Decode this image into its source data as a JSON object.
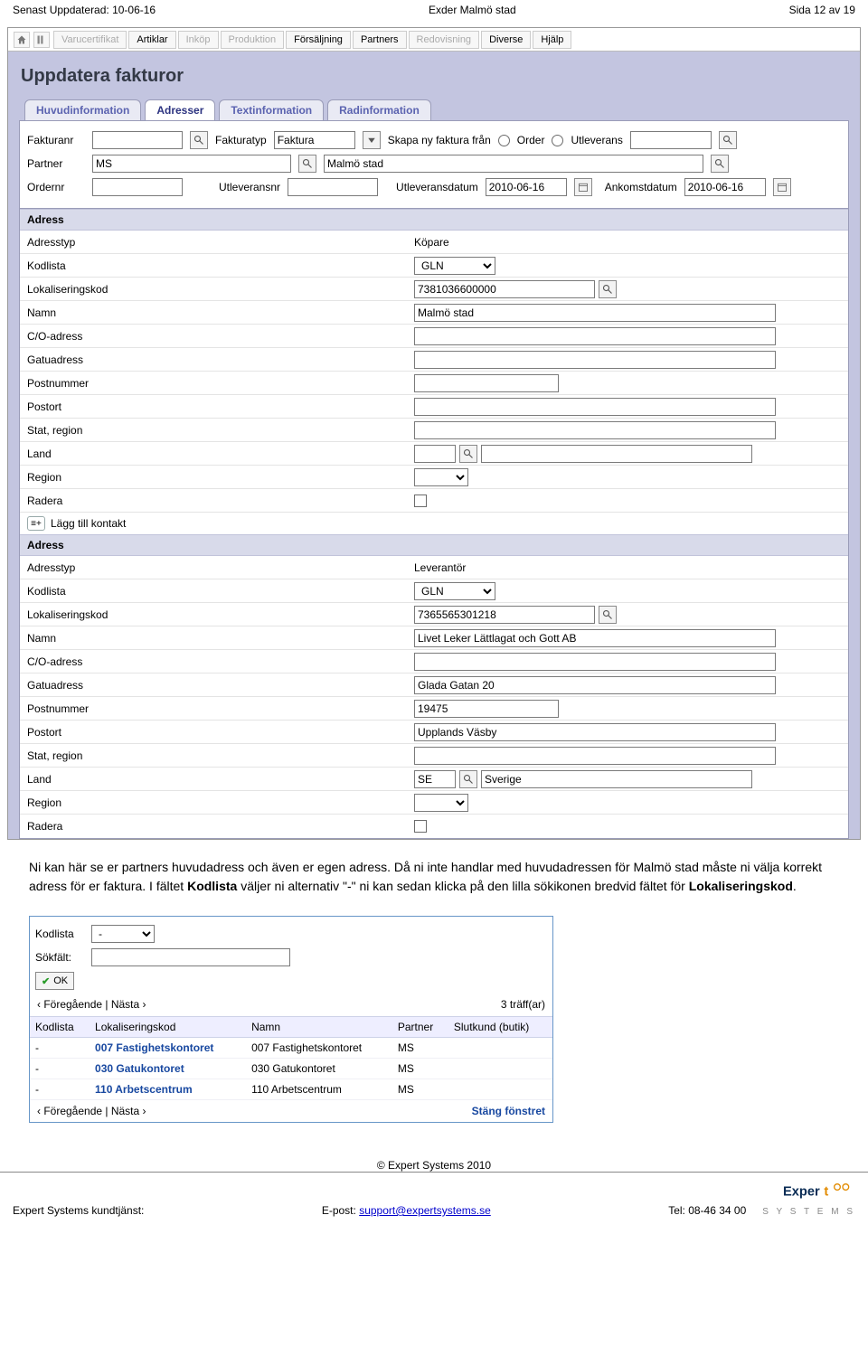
{
  "header": {
    "left": "Senast Uppdaterad: 10-06-16",
    "center": "Exder Malmö stad",
    "right": "Sida 12 av 19"
  },
  "menubar": {
    "items": [
      {
        "label": "Varucertifikat",
        "dim": true
      },
      {
        "label": "Artiklar",
        "dim": false
      },
      {
        "label": "Inköp",
        "dim": true
      },
      {
        "label": "Produktion",
        "dim": true
      },
      {
        "label": "Försäljning",
        "dim": false
      },
      {
        "label": "Partners",
        "dim": false
      },
      {
        "label": "Redovisning",
        "dim": true
      },
      {
        "label": "Diverse",
        "dim": false
      },
      {
        "label": "Hjälp",
        "dim": false
      }
    ]
  },
  "page_title": "Uppdatera fakturor",
  "tabs": [
    {
      "label": "Huvudinformation",
      "active": false
    },
    {
      "label": "Adresser",
      "active": true
    },
    {
      "label": "Textinformation",
      "active": false
    },
    {
      "label": "Radinformation",
      "active": false
    }
  ],
  "form": {
    "fakturanr_label": "Fakturanr",
    "fakturanr": "",
    "fakturatyp_label": "Fakturatyp",
    "fakturatyp": "Faktura",
    "skapa_label": "Skapa ny faktura från",
    "order_label": "Order",
    "utleverans_label": "Utleverans",
    "skapa_value": "",
    "partner_label": "Partner",
    "partner_code": "MS",
    "partner_name": "Malmö stad",
    "ordernr_label": "Ordernr",
    "ordernr": "",
    "utleveransnr_label": "Utleveransnr",
    "utleveransnr": "",
    "utleveransdatum_label": "Utleveransdatum",
    "utleveransdatum": "2010-06-16",
    "ankomstdatum_label": "Ankomstdatum",
    "ankomstdatum": "2010-06-16"
  },
  "address_labels": {
    "section": "Adress",
    "adresstyp": "Adresstyp",
    "kodlista": "Kodlista",
    "lokaliseringskod": "Lokaliseringskod",
    "namn": "Namn",
    "co": "C/O-adress",
    "gatuadress": "Gatuadress",
    "postnummer": "Postnummer",
    "postort": "Postort",
    "stat": "Stat, region",
    "land": "Land",
    "region": "Region",
    "radera": "Radera",
    "add_contact": "Lägg till kontakt"
  },
  "buyer": {
    "adresstyp": "Köpare",
    "kodlista": "GLN",
    "lokaliseringskod": "7381036600000",
    "namn": "Malmö stad",
    "co": "",
    "gatuadress": "",
    "postnummer": "",
    "postort": "",
    "stat": "",
    "land_code": "",
    "land_name": "",
    "region": ""
  },
  "supplier": {
    "adresstyp": "Leverantör",
    "kodlista": "GLN",
    "lokaliseringskod": "7365565301218",
    "namn": "Livet Leker Lättlagat och Gott AB",
    "co": "",
    "gatuadress": "Glada Gatan 20",
    "postnummer": "19475",
    "postort": "Upplands Väsby",
    "stat": "",
    "land_code": "SE",
    "land_name": "Sverige",
    "region": ""
  },
  "body_text": {
    "p1a": "Ni kan här se er partners huvudadress och även er egen adress. Då ni inte handlar med huvudadressen för Malmö stad måste ni välja korrekt adress för er faktura. I fältet ",
    "p1b": "Kodlista",
    "p1c": " väljer ni alternativ \"-\" ni kan sedan klicka på den lilla sökikonen bredvid fältet för ",
    "p1d": "Lokaliseringskod",
    "p1e": "."
  },
  "popup": {
    "kodlista_label": "Kodlista",
    "kodlista_value": "-",
    "sokfalt_label": "Sökfält:",
    "sokfalt_value": "",
    "ok_label": "OK",
    "pager_prev": "‹ Föregående",
    "pager_next": "Nästa ›",
    "pager_sep": " | ",
    "hits": "3 träff(ar)",
    "cols": [
      "Kodlista",
      "Lokaliseringskod",
      "Namn",
      "Partner",
      "Slutkund (butik)"
    ],
    "rows": [
      {
        "kod": "-",
        "lok": "007 Fastighetskontoret",
        "namn": "007 Fastighetskontoret",
        "partner": "MS",
        "slut": ""
      },
      {
        "kod": "-",
        "lok": "030 Gatukontoret",
        "namn": "030 Gatukontoret",
        "partner": "MS",
        "slut": ""
      },
      {
        "kod": "-",
        "lok": "110 Arbetscentrum",
        "namn": "110 Arbetscentrum",
        "partner": "MS",
        "slut": ""
      }
    ],
    "close_label": "Stäng fönstret"
  },
  "footer": {
    "copyright": "© Expert Systems 2010",
    "left": "Expert Systems kundtjänst:",
    "email_label": "E-post: ",
    "email": "support@expertsystems.se",
    "tel": "Tel: 08-46 34 00"
  },
  "colors": {
    "panel_bg": "#c3c5e0",
    "section_head": "#d8daea",
    "link": "#1848a0"
  }
}
